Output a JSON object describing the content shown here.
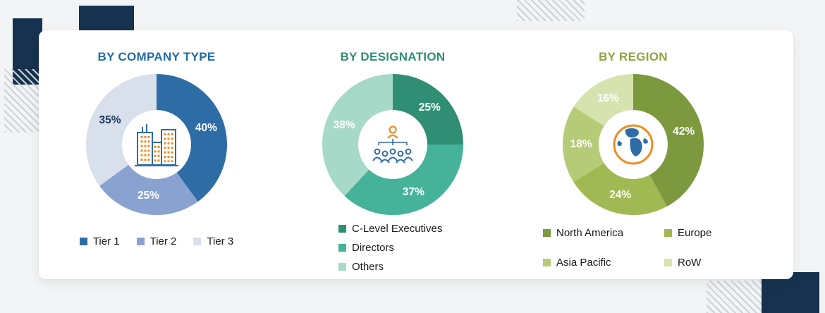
{
  "chart_data": [
    {
      "type": "pie",
      "variant": "donut",
      "title": "BY COMPANY TYPE",
      "title_color": "#1f6cab",
      "center_icon": "buildings-icon",
      "legend_layout": "row",
      "legend_position": "bottom",
      "segments": [
        {
          "label": "Tier 1",
          "value": 40,
          "unit": "%",
          "value_label": "40%",
          "color": "#2e6ca5",
          "value_label_color": "#ffffff"
        },
        {
          "label": "Tier 2",
          "value": 25,
          "unit": "%",
          "value_label": "25%",
          "color": "#8aa2cf",
          "value_label_color": "#ffffff"
        },
        {
          "label": "Tier 3",
          "value": 35,
          "unit": "%",
          "value_label": "35%",
          "color": "#d8e0ec",
          "value_label_color": "#1d3b63"
        }
      ]
    },
    {
      "type": "pie",
      "variant": "donut",
      "title": "BY DESIGNATION",
      "title_color": "#2f8e74",
      "center_icon": "org-chart-icon",
      "legend_layout": "column",
      "legend_position": "bottom",
      "segments": [
        {
          "label": "C-Level Executives",
          "value": 25,
          "unit": "%",
          "value_label": "25%",
          "color": "#2f8e74",
          "value_label_color": "#ffffff"
        },
        {
          "label": "Directors",
          "value": 37,
          "unit": "%",
          "value_label": "37%",
          "color": "#44b399",
          "value_label_color": "#ffffff"
        },
        {
          "label": "Others",
          "value": 38,
          "unit": "%",
          "value_label": "38%",
          "color": "#a6d9c8",
          "value_label_color": "#ffffff"
        }
      ]
    },
    {
      "type": "pie",
      "variant": "donut",
      "title": "BY REGION",
      "title_color": "#8ca53f",
      "center_icon": "globe-icon",
      "legend_layout": "grid",
      "legend_position": "bottom",
      "segments": [
        {
          "label": "North America",
          "value": 42,
          "unit": "%",
          "value_label": "42%",
          "color": "#7c993e",
          "value_label_color": "#ffffff"
        },
        {
          "label": "Europe",
          "value": 24,
          "unit": "%",
          "value_label": "24%",
          "color": "#a0b952",
          "value_label_color": "#ffffff"
        },
        {
          "label": "Asia Pacific",
          "value": 18,
          "unit": "%",
          "value_label": "18%",
          "color": "#b6cb77",
          "value_label_color": "#ffffff"
        },
        {
          "label": "RoW",
          "value": 16,
          "unit": "%",
          "value_label": "16%",
          "color": "#d7e3ae",
          "value_label_color": "#ffffff"
        }
      ]
    }
  ]
}
